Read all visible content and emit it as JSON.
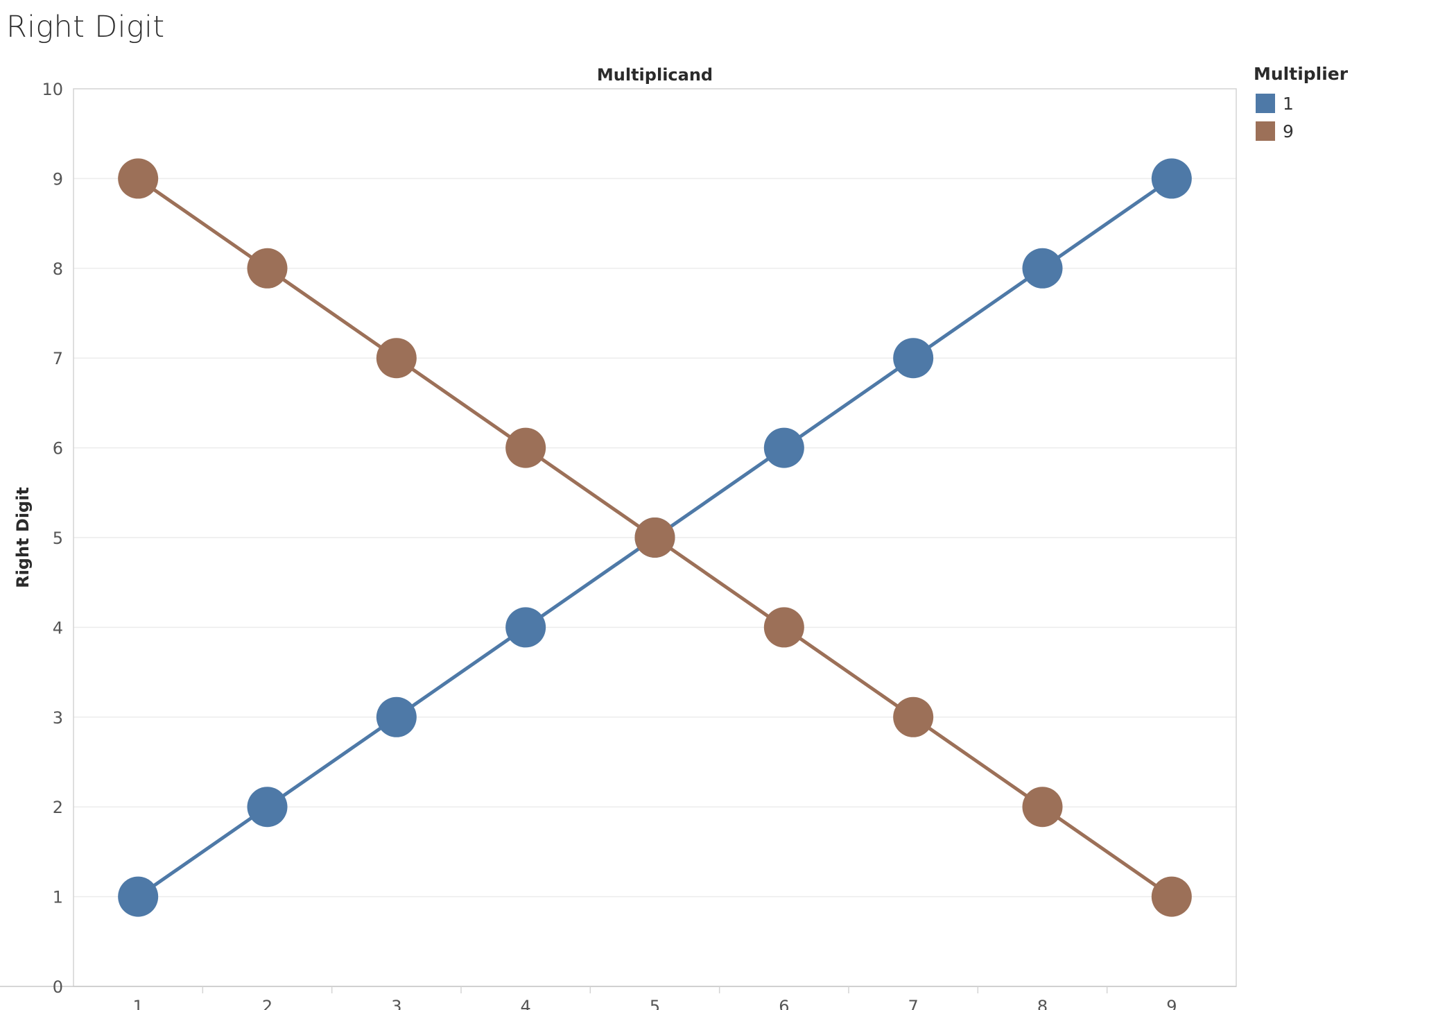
{
  "title": "Right Digit",
  "legend": {
    "title": "Multiplier",
    "items": [
      {
        "label": "1",
        "color": "#4e79a7"
      },
      {
        "label": "9",
        "color": "#9c7058"
      }
    ]
  },
  "chart_data": {
    "type": "line",
    "title": "Right Digit",
    "xlabel": "Multiplicand",
    "ylabel": "Right Digit",
    "x": [
      1,
      2,
      3,
      4,
      5,
      6,
      7,
      8,
      9
    ],
    "xticks": [
      "1",
      "2",
      "3",
      "4",
      "5",
      "6",
      "7",
      "8",
      "9"
    ],
    "yticks": [
      "0",
      "1",
      "2",
      "3",
      "4",
      "5",
      "6",
      "7",
      "8",
      "9",
      "10"
    ],
    "ylim": [
      0,
      10
    ],
    "grid": true,
    "markers": "circle",
    "legend_position": "right",
    "series": [
      {
        "name": "1",
        "color": "#4e79a7",
        "values": [
          1,
          2,
          3,
          4,
          5,
          6,
          7,
          8,
          9
        ]
      },
      {
        "name": "9",
        "color": "#9c7058",
        "values": [
          9,
          8,
          7,
          6,
          5,
          4,
          3,
          2,
          1
        ]
      }
    ]
  }
}
